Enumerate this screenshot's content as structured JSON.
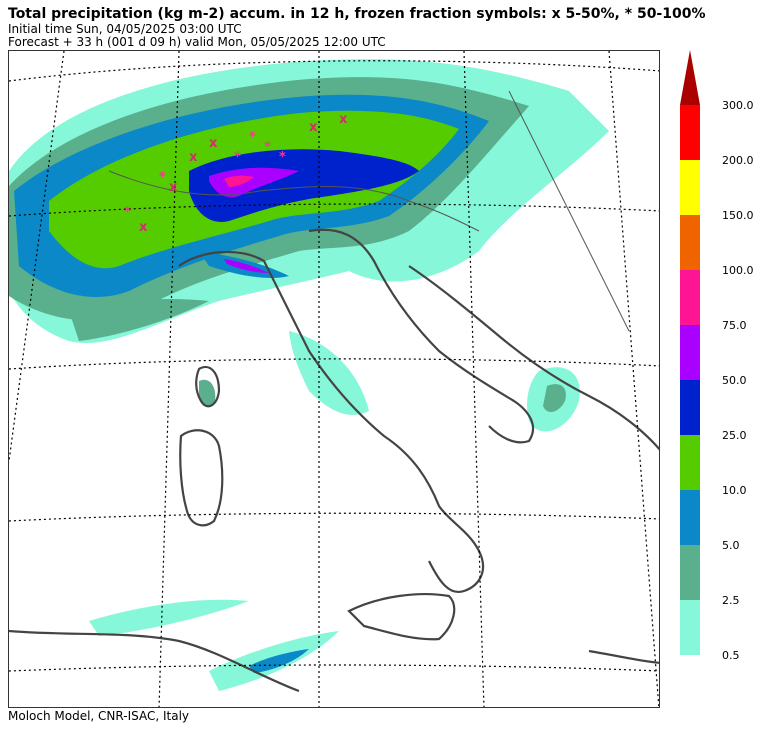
{
  "header": {
    "title": "Total precipitation (kg m-2) accum. in 12 h, frozen fraction symbols: x 5-50%, * 50-100%",
    "initial_time": "Initial time  Sun, 04/05/2025  03:00 UTC",
    "forecast": "Forecast  +  33 h  (001 d 09 h)  valid Mon, 05/05/2025 12:00 UTC"
  },
  "footer": {
    "credit": "Moloch Model, CNR-ISAC, Italy"
  },
  "legend": {
    "levels": [
      {
        "label": "300.0",
        "color": "#ff0000"
      },
      {
        "label": "200.0",
        "color": "#ffff00"
      },
      {
        "label": "150.0",
        "color": "#f06400"
      },
      {
        "label": "100.0",
        "color": "#ff1493"
      },
      {
        "label": "75.0",
        "color": "#aa00ff"
      },
      {
        "label": "50.0",
        "color": "#0022cc"
      },
      {
        "label": "25.0",
        "color": "#55cc00"
      },
      {
        "label": "10.0",
        "color": "#0a88c8"
      },
      {
        "label": "5.0",
        "color": "#5aaf8c"
      },
      {
        "label": "2.5",
        "color": "#86f7d8"
      },
      {
        "label": "0.5",
        "color": ""
      }
    ],
    "arrow_color": "#aa0000"
  },
  "map": {
    "symbols": {
      "mixed": "x",
      "frozen": "*"
    }
  }
}
